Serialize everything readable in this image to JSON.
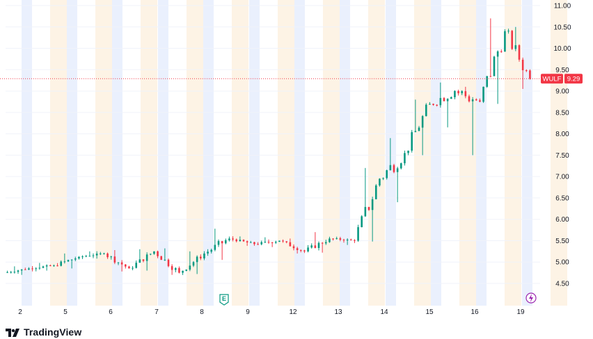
{
  "chart_data": {
    "type": "candlestick",
    "symbol": "WULF",
    "last_price": "9.29",
    "ylim": [
      4.2,
      11.1
    ],
    "y_ticks": [
      "11.00",
      "10.50",
      "10.00",
      "9.50",
      "9.00",
      "8.50",
      "8.00",
      "7.50",
      "7.00",
      "6.50",
      "6.00",
      "5.50",
      "5.00",
      "4.50"
    ],
    "x_ticks": [
      "2",
      "5",
      "6",
      "7",
      "8",
      "9",
      "12",
      "13",
      "14",
      "15",
      "16",
      "19"
    ],
    "events": {
      "earnings_label": "E"
    },
    "colors": {
      "up": "#089981",
      "down": "#f23645",
      "premarket": "#eaf0fd",
      "postmarket": "#fdf3e5",
      "price_line": "#f23645"
    },
    "segments": [
      {
        "day": "2",
        "open": 4.75,
        "close": 4.85,
        "low": 4.7,
        "high": 4.9
      },
      {
        "day": "5",
        "open": 4.85,
        "close": 4.92,
        "low": 4.8,
        "high": 4.98
      },
      {
        "day": "6",
        "open": 4.92,
        "close": 5.12,
        "low": 4.85,
        "high": 5.2
      },
      {
        "day": "7",
        "open": 5.12,
        "close": 5.2,
        "low": 5.08,
        "high": 5.25
      },
      {
        "day": "7b",
        "open": 5.2,
        "close": 4.85,
        "low": 4.78,
        "high": 5.28
      },
      {
        "day": "8",
        "open": 4.85,
        "close": 5.25,
        "low": 4.8,
        "high": 5.3
      },
      {
        "day": "8b",
        "open": 5.25,
        "close": 4.75,
        "low": 4.7,
        "high": 5.32
      },
      {
        "day": "9",
        "open": 4.75,
        "close": 5.2,
        "low": 4.72,
        "high": 5.25
      },
      {
        "day": "9b",
        "open": 5.2,
        "close": 5.55,
        "low": 5.05,
        "high": 5.78
      },
      {
        "day": "12",
        "open": 5.55,
        "close": 5.42,
        "low": 5.38,
        "high": 5.6
      },
      {
        "day": "12b",
        "open": 5.42,
        "close": 5.5,
        "low": 5.35,
        "high": 5.58
      },
      {
        "day": "13",
        "open": 5.5,
        "close": 5.25,
        "low": 5.2,
        "high": 5.55
      },
      {
        "day": "13b",
        "open": 5.25,
        "close": 5.55,
        "low": 5.22,
        "high": 5.7
      },
      {
        "day": "14",
        "open": 5.55,
        "close": 5.5,
        "low": 5.4,
        "high": 5.58
      },
      {
        "day": "14b",
        "open": 5.5,
        "close": 6.95,
        "low": 5.48,
        "high": 7.2
      },
      {
        "day": "15",
        "open": 6.95,
        "close": 7.55,
        "low": 6.4,
        "high": 7.9
      },
      {
        "day": "15b",
        "open": 7.55,
        "close": 8.7,
        "low": 7.5,
        "high": 8.8
      },
      {
        "day": "16",
        "open": 8.7,
        "close": 9.0,
        "low": 8.15,
        "high": 9.2
      },
      {
        "day": "16b",
        "open": 9.0,
        "close": 8.75,
        "low": 7.5,
        "high": 9.1
      },
      {
        "day": "19a",
        "open": 8.75,
        "close": 10.4,
        "low": 8.7,
        "high": 10.7
      },
      {
        "day": "19",
        "open": 10.4,
        "close": 9.29,
        "low": 9.05,
        "high": 10.5
      }
    ]
  },
  "branding": {
    "logo_text": "TradingView"
  }
}
